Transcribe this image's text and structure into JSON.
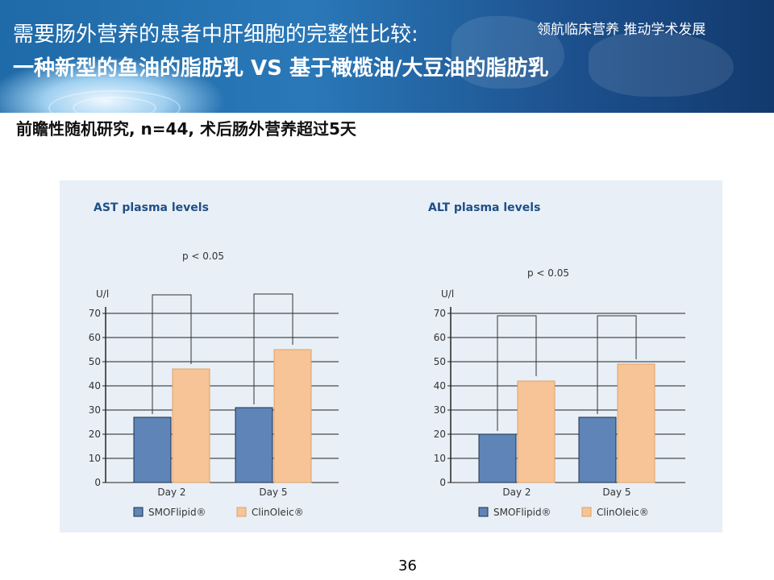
{
  "header": {
    "title_line1": "需要肠外营养的患者中肝细胞的完整性比较:",
    "title_line2": "一种新型的鱼油的脂肪乳 VS 基于橄榄油/大豆油的脂肪乳",
    "slogan": "领航临床营养 推动学术发展"
  },
  "subtitle": "前瞻性随机研究, n=44, 术后肠外营养超过5天",
  "page_number": "36",
  "colors": {
    "banner": "#1f6aa8",
    "panel": "#e8eff6",
    "smoflipid": "#5f84b8",
    "clinoleic": "#f6c497",
    "axis_text": "#333333",
    "title_text": "#1f4f86"
  },
  "chart_data": [
    {
      "type": "bar",
      "title": "AST plasma levels",
      "ylabel": "U/l",
      "ylim": [
        0,
        70
      ],
      "yticks": [
        0,
        10,
        20,
        30,
        40,
        50,
        60,
        70
      ],
      "grid": true,
      "categories": [
        "Day 2",
        "Day 5"
      ],
      "series": [
        {
          "name": "SMOFlipid®",
          "values": [
            27,
            31
          ]
        },
        {
          "name": "ClinOleic®",
          "values": [
            47,
            55
          ]
        }
      ],
      "annotation": "p < 0.05",
      "legend": "bottom"
    },
    {
      "type": "bar",
      "title": "ALT plasma levels",
      "ylabel": "U/l",
      "ylim": [
        0,
        70
      ],
      "yticks": [
        0,
        10,
        20,
        30,
        40,
        50,
        60,
        70
      ],
      "grid": true,
      "categories": [
        "Day 2",
        "Day 5"
      ],
      "series": [
        {
          "name": "SMOFlipid®",
          "values": [
            20,
            27
          ]
        },
        {
          "name": "ClinOleic®",
          "values": [
            42,
            49
          ]
        }
      ],
      "annotation": "p < 0.05",
      "legend": "bottom"
    }
  ]
}
